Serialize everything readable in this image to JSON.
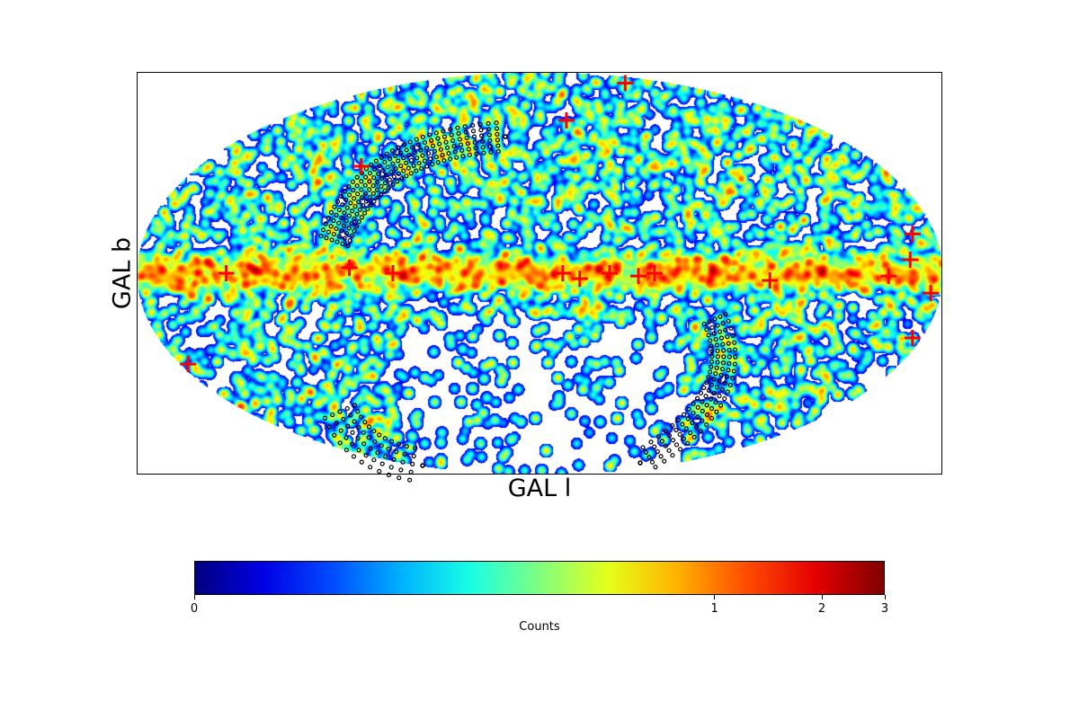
{
  "chart_data": {
    "type": "heatmap",
    "projection": "mollweide",
    "xlabel": "GAL l",
    "ylabel": "GAL b",
    "colormap": "jet",
    "colorbar": {
      "label": "Counts",
      "scale": "asinh",
      "range": [
        0,
        3
      ],
      "ticks": [
        0,
        1,
        2,
        3
      ],
      "tick_labels": [
        "0",
        "1",
        "2",
        "3"
      ]
    },
    "markers": {
      "symbol": "plus",
      "color": "#ff0000",
      "points": [
        {
          "l": -116,
          "b": 79.8
        },
        {
          "l": -18.5,
          "b": 59.7
        },
        {
          "l": 94,
          "b": 40
        },
        {
          "l": 140,
          "b": 0
        },
        {
          "l": 85,
          "b": 2
        },
        {
          "l": 65.5,
          "b": 0
        },
        {
          "l": -10.4,
          "b": 0
        },
        {
          "l": -18,
          "b": -2
        },
        {
          "l": -31.3,
          "b": 0
        },
        {
          "l": -44.2,
          "b": -1
        },
        {
          "l": -51.4,
          "b": 0
        },
        {
          "l": -103,
          "b": -2.6
        },
        {
          "l": -156,
          "b": -1
        },
        {
          "l": -170,
          "b": 14.3
        },
        {
          "l": -166,
          "b": 4.9
        },
        {
          "l": -175.7,
          "b": -7.2
        },
        {
          "l": -176,
          "b": -23.7
        },
        {
          "l": 176,
          "b": -33.7
        }
      ]
    },
    "tracks": {
      "symbol": "open-circle",
      "color": "#000000"
    },
    "grid": false
  }
}
